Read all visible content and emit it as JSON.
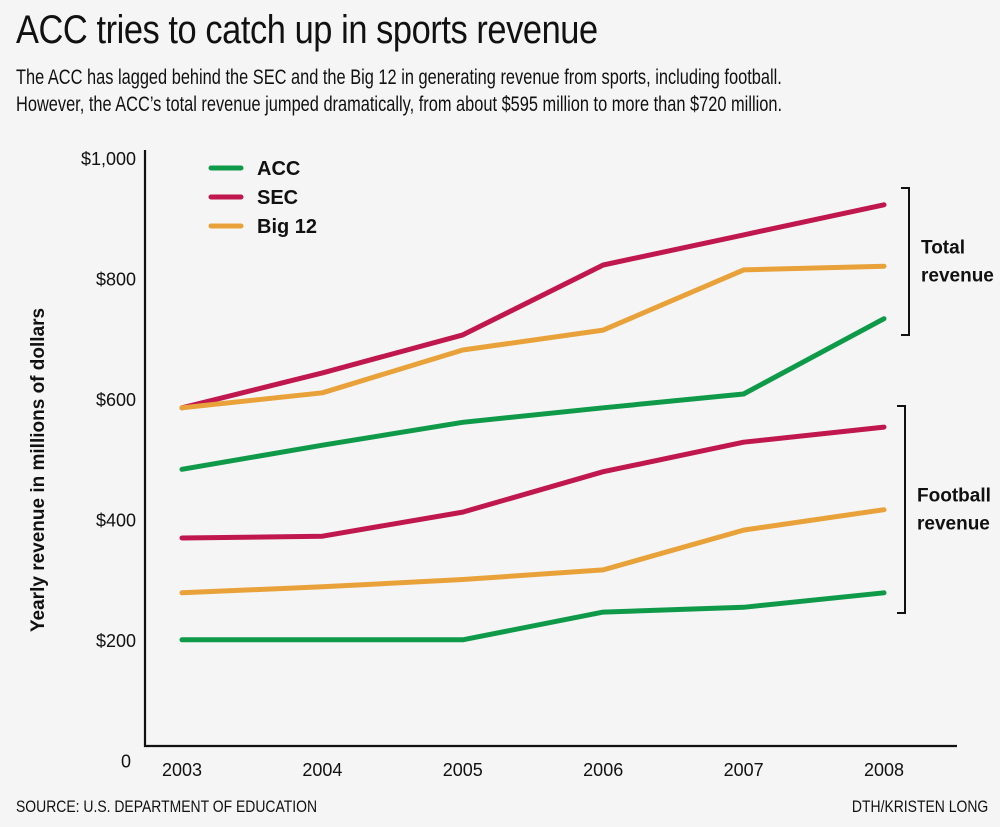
{
  "header": {
    "title": "ACC tries to catch up in sports revenue",
    "subtitle_lines": [
      "The ACC has lagged behind the SEC and the Big 12 in generating revenue from sports, including football.",
      "However, the ACC’s total revenue jumped dramatically, from about $595 million to more than $720 million."
    ]
  },
  "footer": {
    "source": "SOURCE: U.S. DEPARTMENT OF EDUCATION",
    "credit": "DTH/KRISTEN LONG"
  },
  "colors": {
    "ACC": "#0f9a4a",
    "SEC": "#c0174f",
    "Big 12": "#e9a23a",
    "axis": "#111111",
    "background": "#f5f5f5"
  },
  "chart_data": {
    "type": "line",
    "title": "ACC tries to catch up in sports revenue",
    "xlabel": "",
    "ylabel": "Yearly revenue in millions of dollars",
    "x": [
      "2003",
      "2004",
      "2005",
      "2006",
      "2007",
      "2008"
    ],
    "ylim": [
      0,
      1000
    ],
    "yticks": [
      0,
      200,
      400,
      600,
      800,
      1000
    ],
    "ytick_labels": [
      "0",
      "$200",
      "$400",
      "$600",
      "$800",
      "$1,000"
    ],
    "grid": false,
    "legend": {
      "position": "top-left",
      "entries": [
        "ACC",
        "SEC",
        "Big 12"
      ]
    },
    "groups": [
      {
        "label_lines": [
          "Total",
          "revenue"
        ],
        "range": [
          590,
          940
        ]
      },
      {
        "label_lines": [
          "Football",
          "revenue"
        ],
        "range": [
          245,
          590
        ]
      }
    ],
    "series": [
      {
        "name": "ACC",
        "group": "Total revenue",
        "values": [
          485,
          525,
          563,
          587,
          610,
          735
        ]
      },
      {
        "name": "SEC",
        "group": "Total revenue",
        "values": [
          587,
          645,
          708,
          824,
          874,
          924
        ]
      },
      {
        "name": "Big 12",
        "group": "Total revenue",
        "values": [
          587,
          612,
          683,
          716,
          816,
          822
        ]
      },
      {
        "name": "ACC",
        "group": "Football revenue",
        "values": [
          202,
          202,
          202,
          248,
          256,
          280
        ]
      },
      {
        "name": "SEC",
        "group": "Football revenue",
        "values": [
          371,
          374,
          414,
          481,
          530,
          555
        ]
      },
      {
        "name": "Big 12",
        "group": "Football revenue",
        "values": [
          280,
          290,
          302,
          318,
          384,
          418
        ]
      }
    ]
  }
}
